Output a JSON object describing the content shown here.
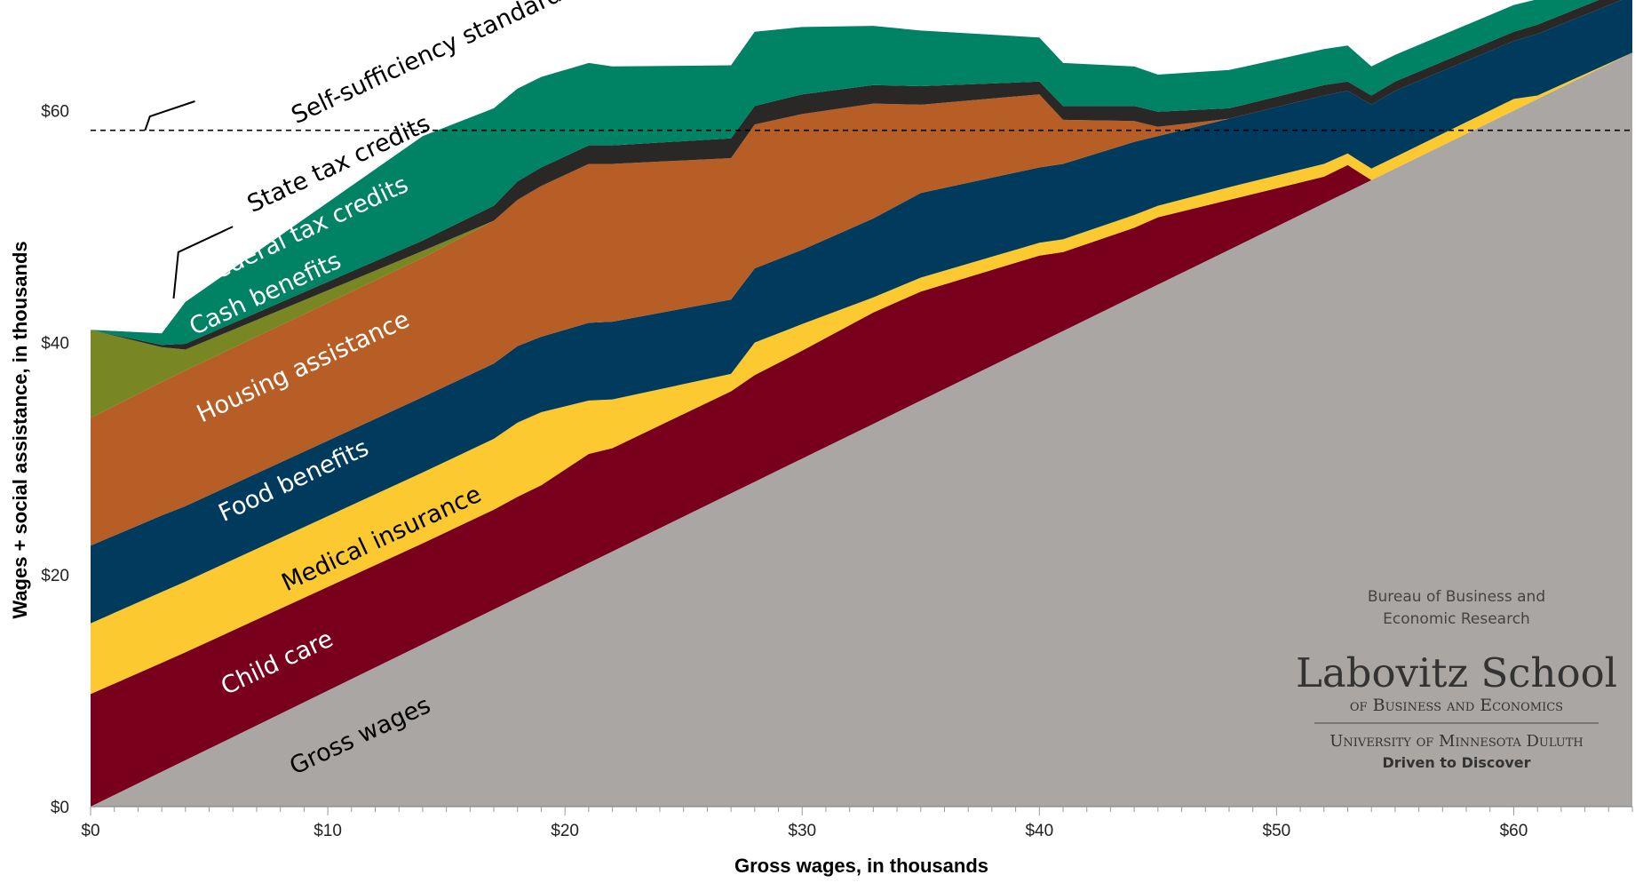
{
  "chart_data": {
    "type": "area",
    "title": "",
    "xlabel": "Gross wages, in thousands",
    "ylabel": "Wages + social assistance, in thousands",
    "xlim": [
      0,
      65
    ],
    "ylim": [
      0,
      68
    ],
    "x_ticks": [
      0,
      10,
      20,
      30,
      40,
      50,
      60
    ],
    "x_tick_labels": [
      "$0",
      "$10",
      "$20",
      "$30",
      "$40",
      "$50",
      "$60"
    ],
    "y_ticks": [
      0,
      20,
      40,
      60
    ],
    "y_tick_labels": [
      "$0",
      "$20",
      "$40",
      "$60"
    ],
    "stacked": true,
    "x": [
      0,
      3,
      4,
      14,
      17,
      18,
      19,
      21,
      22,
      27,
      28,
      30,
      33,
      35,
      40,
      41,
      44,
      45,
      48,
      52,
      53,
      54,
      55,
      60,
      61,
      65
    ],
    "series": [
      {
        "name": "Gross wages",
        "color": "#aaa6a4",
        "values": [
          0,
          3,
          4,
          14,
          17,
          18,
          19,
          21,
          22,
          27,
          28,
          30,
          33,
          35,
          40,
          41,
          44,
          45,
          48,
          52,
          53,
          54,
          55,
          60,
          61,
          65
        ]
      },
      {
        "name": "Child care",
        "color": "#78001c",
        "values": [
          9.7,
          9.4,
          9.3,
          8.7,
          8.6,
          8.7,
          8.7,
          9.4,
          8.9,
          8.8,
          9.2,
          9.3,
          9.6,
          9.4,
          7.5,
          6.8,
          5.9,
          5.8,
          4.3,
          2.3,
          2.3,
          0,
          0,
          0,
          0,
          0
        ]
      },
      {
        "name": "Medical insurance",
        "color": "#fdc931",
        "values": [
          6.1,
          6.1,
          6.1,
          6.1,
          6.1,
          6.4,
          6.3,
          4.6,
          4.2,
          1.5,
          2.8,
          2.3,
          1.3,
          1.2,
          1.1,
          1.1,
          1.1,
          1.0,
          1.1,
          1.1,
          1.0,
          1.0,
          1.0,
          1.0,
          0.3,
          0
        ]
      },
      {
        "name": "Food benefits",
        "color": "#003a5c",
        "values": [
          6.7,
          6.6,
          6.5,
          6.5,
          6.5,
          6.6,
          6.5,
          6.7,
          6.7,
          6.4,
          6.4,
          6.4,
          6.8,
          7.3,
          6.5,
          6.5,
          6.3,
          6.0,
          5.9,
          5.9,
          5.4,
          5.5,
          5.7,
          5.0,
          5.3,
          4.9
        ]
      },
      {
        "name": "Housing assistance",
        "color": "#b65e25",
        "values": [
          11.0,
          11.5,
          11.7,
          12.0,
          12.3,
          12.6,
          13.0,
          13.7,
          13.6,
          12.2,
          12.4,
          11.7,
          9.9,
          7.6,
          6.3,
          3.8,
          1.8,
          0.8,
          0,
          0,
          0,
          0,
          0,
          0,
          0,
          0
        ]
      },
      {
        "name": "Cash benefits",
        "color": "#788623",
        "values": [
          7.6,
          3.0,
          1.8,
          0.6,
          0,
          0,
          0,
          0,
          0,
          0,
          0,
          0,
          0,
          0,
          0,
          0,
          0,
          0,
          0,
          0,
          0,
          0,
          0,
          0,
          0,
          0
        ]
      },
      {
        "name": "State tax credits",
        "color": "#2a2826",
        "values": [
          0,
          0.2,
          0.5,
          0.9,
          1.3,
          1.6,
          1.6,
          1.6,
          1.6,
          1.7,
          1.6,
          1.7,
          1.6,
          1.6,
          1.1,
          1.2,
          1.3,
          1.3,
          0.9,
          0.9,
          0.8,
          0.8,
          0.8,
          0.8,
          0.8,
          0.8
        ]
      },
      {
        "name": "Federal tax credits",
        "color": "#008264",
        "values": [
          0,
          1.0,
          3.6,
          9.0,
          8.4,
          8.0,
          7.8,
          7.1,
          6.8,
          6.3,
          6.4,
          5.8,
          5.1,
          4.8,
          3.8,
          3.7,
          3.4,
          3.2,
          3.3,
          3.1,
          3.1,
          2.5,
          2.3,
          2.3,
          2.2,
          3.2
        ]
      }
    ],
    "reference_line": {
      "label": "Self-sufficiency standard",
      "value": 58.3
    },
    "annotations": [
      {
        "text": "Gross wages",
        "x": 11.5,
        "y": 5.5,
        "rotation": -25,
        "color": "#000000",
        "series": "Gross wages"
      },
      {
        "text": "Child care",
        "x": 8,
        "y": 11.8,
        "rotation": -25,
        "color": "#ffffff",
        "series": "Child care"
      },
      {
        "text": "Medical insurance",
        "x": 12.4,
        "y": 22.5,
        "rotation": -25,
        "color": "#000000",
        "series": "Medical insurance"
      },
      {
        "text": "Food benefits",
        "x": 8.7,
        "y": 27.5,
        "rotation": -25,
        "color": "#ffffff",
        "series": "Food benefits"
      },
      {
        "text": "Housing assistance",
        "x": 9.1,
        "y": 37.3,
        "rotation": -25,
        "color": "#ffffff",
        "series": "Housing assistance"
      },
      {
        "text": "Cash benefits",
        "x": 7.5,
        "y": 43.6,
        "rotation": -25,
        "color": "#ffffff",
        "series": "Cash benefits"
      },
      {
        "text": "Federal tax credits",
        "x": 9.2,
        "y": 49.1,
        "rotation": -25,
        "color": "#ffffff",
        "series": "Federal tax credits"
      },
      {
        "text": "State tax credits",
        "x": 10.6,
        "y": 54.8,
        "rotation": -25,
        "color": "#000000",
        "series": "State tax credits"
      },
      {
        "text": "Self-sufficiency standard",
        "x": 14.3,
        "y": 64.2,
        "rotation": -25,
        "color": "#000000",
        "series": "Self-sufficiency standard"
      }
    ],
    "callout_lines": [
      {
        "series": "State tax credits",
        "points": [
          [
            3.5,
            43.8
          ],
          [
            3.7,
            47.8
          ],
          [
            6.0,
            50.0
          ]
        ]
      },
      {
        "series": "Self-sufficiency standard",
        "points": [
          [
            2.3,
            58.3
          ],
          [
            2.5,
            59.5
          ],
          [
            4.4,
            60.8
          ]
        ]
      }
    ]
  },
  "logo": {
    "bureau_line1": "Bureau of Business and",
    "bureau_line2": "Economic Research",
    "school": "Labovitz School",
    "school_subtitle": "of Business and Economics",
    "university": "University of Minnesota Duluth",
    "tagline": "Driven to Discover"
  }
}
